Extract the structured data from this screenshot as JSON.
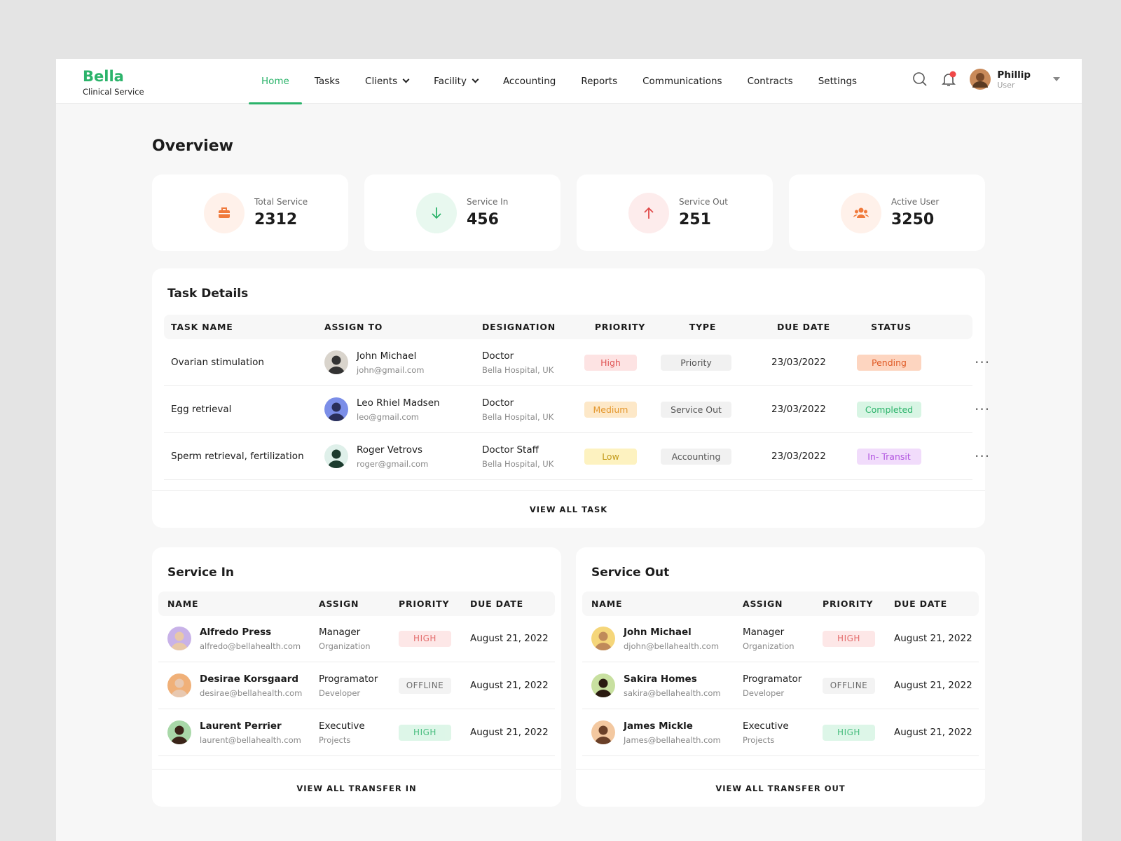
{
  "nav": {
    "brand": "Bella",
    "subtitle": "Clinical Service",
    "items": [
      "Home",
      "Tasks",
      "Clients",
      "Facility",
      "Accounting",
      "Reports",
      "Communications",
      "Contracts",
      "Settings"
    ],
    "user": {
      "name": "Phillip",
      "role": "User"
    }
  },
  "overview": {
    "title": "Overview",
    "stats": [
      {
        "label": "Total Service",
        "value": 2312
      },
      {
        "label": "Service In",
        "value": 456
      },
      {
        "label": "Service Out",
        "value": 251
      },
      {
        "label": "Active User",
        "value": 3250
      }
    ]
  },
  "task_details": {
    "title": "Task Details",
    "columns": [
      "TASK NAME",
      "ASSIGN TO",
      "DESIGNATION",
      "PRIORITY",
      "TYPE",
      "DUE DATE",
      "STATUS"
    ],
    "rows": [
      {
        "task": "Ovarian stimulation",
        "name": "John Michael",
        "email": "john@gmail.com",
        "designation": "Doctor",
        "place": "Bella Hospital, UK",
        "priority": "High",
        "type": "Priority",
        "due": "23/03/2022",
        "status": "Pending"
      },
      {
        "task": "Egg retrieval",
        "name": "Leo Rhiel Madsen",
        "email": "leo@gmail.com",
        "designation": "Doctor",
        "place": "Bella Hospital, UK",
        "priority": "Medium",
        "type": "Service Out",
        "due": "23/03/2022",
        "status": "Completed"
      },
      {
        "task": "Sperm retrieval, fertilization",
        "name": "Roger Vetrovs",
        "email": "roger@gmail.com",
        "designation": "Doctor Staff",
        "place": "Bella Hospital, UK",
        "priority": "Low",
        "type": "Accounting",
        "due": "23/03/2022",
        "status": "In- Transit"
      }
    ],
    "footer": "VIEW ALL TASK"
  },
  "service_in": {
    "title": "Service In",
    "columns": [
      "NAME",
      "ASSIGN",
      "PRIORITY",
      "DUE DATE"
    ],
    "rows": [
      {
        "name": "Alfredo Press",
        "email": "alfredo@bellahealth.com",
        "role": "Manager",
        "dept": "Organization",
        "priority": "HIGH",
        "due": "August 21, 2022"
      },
      {
        "name": "Desirae Korsgaard",
        "email": "desirae@bellahealth.com",
        "role": "Programator",
        "dept": "Developer",
        "priority": "OFFLINE",
        "due": "August 21, 2022"
      },
      {
        "name": "Laurent Perrier",
        "email": "laurent@bellahealth.com",
        "role": "Executive",
        "dept": "Projects",
        "priority": "HIGH",
        "due": "August 21, 2022"
      }
    ],
    "footer": "VIEW ALL TRANSFER IN"
  },
  "service_out": {
    "title": "Service Out",
    "columns": [
      "NAME",
      "ASSIGN",
      "PRIORITY",
      "DUE DATE"
    ],
    "rows": [
      {
        "name": "John Michael",
        "email": "djohn@bellahealth.com",
        "role": "Manager",
        "dept": "Organization",
        "priority": "HIGH",
        "due": "August 21, 2022"
      },
      {
        "name": "Sakira Homes",
        "email": "sakira@bellahealth.com",
        "role": "Programator",
        "dept": "Developer",
        "priority": "OFFLINE",
        "due": "August 21, 2022"
      },
      {
        "name": "James Mickle",
        "email": "James@bellahealth.com",
        "role": "Executive",
        "dept": "Projects",
        "priority": "HIGH",
        "due": "August 21, 2022"
      }
    ],
    "footer": "VIEW ALL TRANSFER OUT"
  }
}
